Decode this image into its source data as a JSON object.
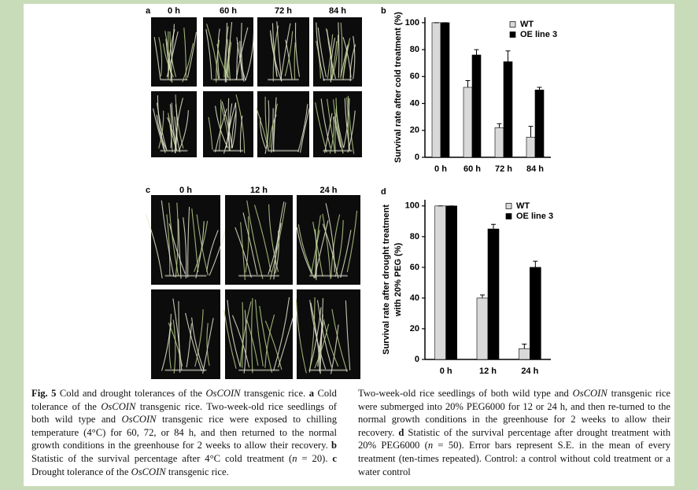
{
  "panel_a": {
    "label": "a",
    "columns": [
      "0 h",
      "60 h",
      "72 h",
      "84 h"
    ]
  },
  "panel_c": {
    "label": "c",
    "columns": [
      "0 h",
      "12 h",
      "24 h"
    ]
  },
  "chart_data": [
    {
      "type": "bar",
      "panel_label": "b",
      "y_label": [
        "Survival rate after cold treatment (%)"
      ],
      "categories": [
        "0 h",
        "60 h",
        "72 h",
        "84 h"
      ],
      "series": [
        {
          "name": "WT",
          "color": "#d9d9d9",
          "values": [
            100,
            52,
            22,
            15
          ],
          "errors": [
            0,
            5,
            3,
            8
          ]
        },
        {
          "name": "OE line 3",
          "color": "#000000",
          "values": [
            100,
            76,
            71,
            50
          ],
          "errors": [
            0,
            4,
            8,
            2
          ]
        }
      ],
      "ylim": [
        0,
        104
      ],
      "yticks": [
        0,
        20,
        40,
        60,
        80,
        100
      ]
    },
    {
      "type": "bar",
      "panel_label": "d",
      "y_label": [
        "Survival rate after drought treatment",
        "with 20% PEG (%)"
      ],
      "categories": [
        "0 h",
        "12 h",
        "24 h"
      ],
      "series": [
        {
          "name": "WT",
          "color": "#d9d9d9",
          "values": [
            100,
            40,
            7
          ],
          "errors": [
            0,
            2,
            3
          ]
        },
        {
          "name": "OE line 3",
          "color": "#000000",
          "values": [
            100,
            85,
            60
          ],
          "errors": [
            0,
            3,
            4
          ]
        }
      ],
      "ylim": [
        0,
        104
      ],
      "yticks": [
        0,
        20,
        40,
        60,
        80,
        100
      ]
    }
  ],
  "caption": {
    "left": [
      {
        "text": "Fig. 5",
        "style": "bold"
      },
      " Cold and drought tolerances of the ",
      {
        "text": "OsCOIN",
        "style": "italic"
      },
      " transgenic rice. ",
      {
        "text": "a",
        "style": "bold"
      },
      " Cold tolerance of the ",
      {
        "text": "OsCOIN",
        "style": "italic"
      },
      " transgenic rice. Two-week-old rice seedlings of both wild type and ",
      {
        "text": "OsCOIN",
        "style": "italic"
      },
      " transgenic rice were exposed to chilling temperature (4°C) for 60, 72, or 84 h, and then returned to the normal growth conditions in the greenhouse for 2 weeks to allow their recovery. ",
      {
        "text": "b",
        "style": "bold"
      },
      " Statistic of the survival percentage after 4°C cold treatment (",
      {
        "text": "n",
        "style": "italic"
      },
      " = 20). ",
      {
        "text": "c",
        "style": "bold"
      },
      " Drought tolerance of the ",
      {
        "text": "OsCOIN",
        "style": "italic"
      },
      " transgenic rice."
    ],
    "right": [
      "Two-week-old rice seedlings of both wild type and ",
      {
        "text": "OsCOIN",
        "style": "italic"
      },
      " transgenic rice were submerged into 20% PEG6000 for 12 or 24 h, and then re-turned to the normal growth conditions in the greenhouse for 2 weeks to allow their recovery. ",
      {
        "text": "d",
        "style": "bold"
      },
      " Statistic of the survival percentage after drought treatment with 20% PEG6000 (",
      {
        "text": "n",
        "style": "italic"
      },
      " = 50). Error bars represent S.E. in the mean of every treatment (ten-times repeated). Control: a control without cold treatment or a water control"
    ]
  }
}
